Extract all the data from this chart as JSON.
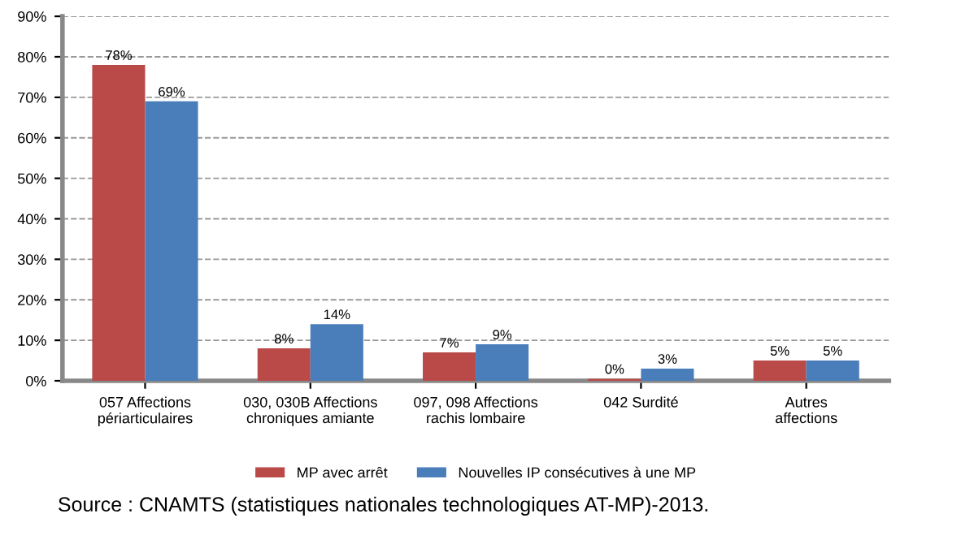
{
  "chart_data": {
    "type": "bar",
    "categories": [
      "057 Affections périarticulaires",
      "030, 030B Affections chroniques amiante",
      "097, 098 Affections rachis lombaire",
      "042 Surdité",
      "Autres affections"
    ],
    "series": [
      {
        "name": "MP avec arrêt",
        "color": "#b94a48",
        "values": [
          78,
          8,
          7,
          0.5,
          5
        ],
        "value_labels": [
          "78%",
          "8%",
          "7%",
          "0%",
          "5%"
        ]
      },
      {
        "name": "Nouvelles IP consécutives à une MP",
        "color": "#4a7ebb",
        "values": [
          69,
          14,
          9,
          3,
          5
        ],
        "value_labels": [
          "69%",
          "14%",
          "9%",
          "3%",
          "5%"
        ]
      }
    ],
    "ylim": [
      0,
      90
    ],
    "yticks": [
      {
        "value": 0,
        "label": "0%"
      },
      {
        "value": 10,
        "label": "10%"
      },
      {
        "value": 20,
        "label": "20%"
      },
      {
        "value": 30,
        "label": "30%"
      },
      {
        "value": 40,
        "label": "40%"
      },
      {
        "value": 50,
        "label": "50%"
      },
      {
        "value": 60,
        "label": "60%"
      },
      {
        "value": 70,
        "label": "70%"
      },
      {
        "value": 80,
        "label": "80%"
      },
      {
        "value": 90,
        "label": "90%"
      }
    ],
    "grid": "y",
    "legend": "bottom",
    "annotations": [
      "Source : CNAMTS (statistiques nationales technologiques AT-MP)-2013."
    ]
  }
}
